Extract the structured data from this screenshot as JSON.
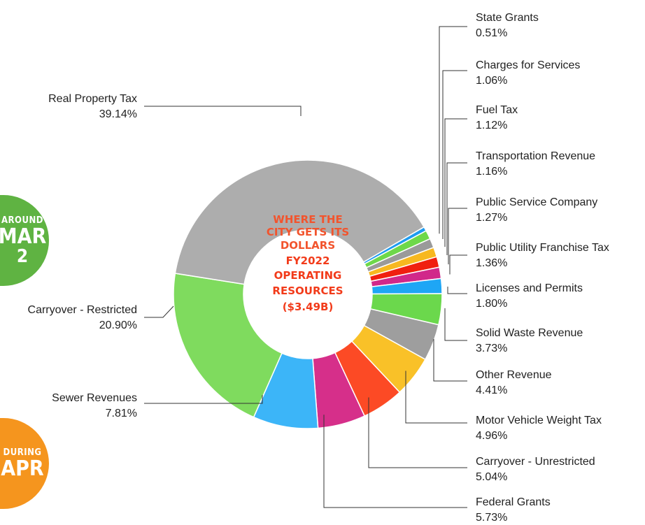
{
  "badges": {
    "mar": {
      "top": "AROUND",
      "main": "MAR",
      "sub": "2",
      "color": "#5fb342"
    },
    "apr": {
      "top": "DURING",
      "main": "APR",
      "color": "#f5951e"
    }
  },
  "center": {
    "line1": "WHERE THE",
    "line2": "CITY GETS ITS",
    "line3": "DOLLARS",
    "line4": "FY2022",
    "line5": "OPERATING",
    "line6": "RESOURCES",
    "line7": "($3.49B)",
    "color": "#f23b1a"
  },
  "chart_data": {
    "type": "pie",
    "donut": true,
    "title": "WHERE THE CITY GETS ITS DOLLARS FY2022 OPERATING RESOURCES ($3.49B)",
    "unit": "%",
    "slices": [
      {
        "label": "State Grants",
        "pct_label": "0.51%",
        "value": 0.51,
        "color": "#1e9cf0"
      },
      {
        "label": "Charges for Services",
        "pct_label": "1.06%",
        "value": 1.06,
        "color": "#6ed84a"
      },
      {
        "label": "Fuel Tax",
        "pct_label": "1.12%",
        "value": 1.12,
        "color": "#9a9a9a"
      },
      {
        "label": "Transportation Revenue",
        "pct_label": "1.16%",
        "value": 1.16,
        "color": "#f7b820"
      },
      {
        "label": "Public Service Company",
        "pct_label": "1.27%",
        "value": 1.27,
        "color": "#f01f10"
      },
      {
        "label": "Public Utility Franchise Tax",
        "pct_label": "1.36%",
        "value": 1.36,
        "color": "#d1288a"
      },
      {
        "label": "Licenses and Permits",
        "pct_label": "1.80%",
        "value": 1.8,
        "color": "#1ea6f5"
      },
      {
        "label": "Solid Waste Revenue",
        "pct_label": "3.73%",
        "value": 3.73,
        "color": "#6bd84c"
      },
      {
        "label": "Other Revenue",
        "pct_label": "4.41%",
        "value": 4.41,
        "color": "#9e9e9e"
      },
      {
        "label": "Motor Vehicle Weight Tax",
        "pct_label": "4.96%",
        "value": 4.96,
        "color": "#f9c128"
      },
      {
        "label": "Carryover - Unrestricted",
        "pct_label": "5.04%",
        "value": 5.04,
        "color": "#fc4a25"
      },
      {
        "label": "Federal Grants",
        "pct_label": "5.73%",
        "value": 5.73,
        "color": "#d62f8a"
      },
      {
        "label": "Sewer Revenues",
        "pct_label": "7.81%",
        "value": 7.81,
        "color": "#3cb5f8"
      },
      {
        "label": "Carryover - Restricted",
        "pct_label": "20.90%",
        "value": 20.9,
        "color": "#7fdb5e"
      },
      {
        "label": "Real Property Tax",
        "pct_label": "39.14%",
        "value": 39.14,
        "color": "#adadad"
      }
    ]
  }
}
